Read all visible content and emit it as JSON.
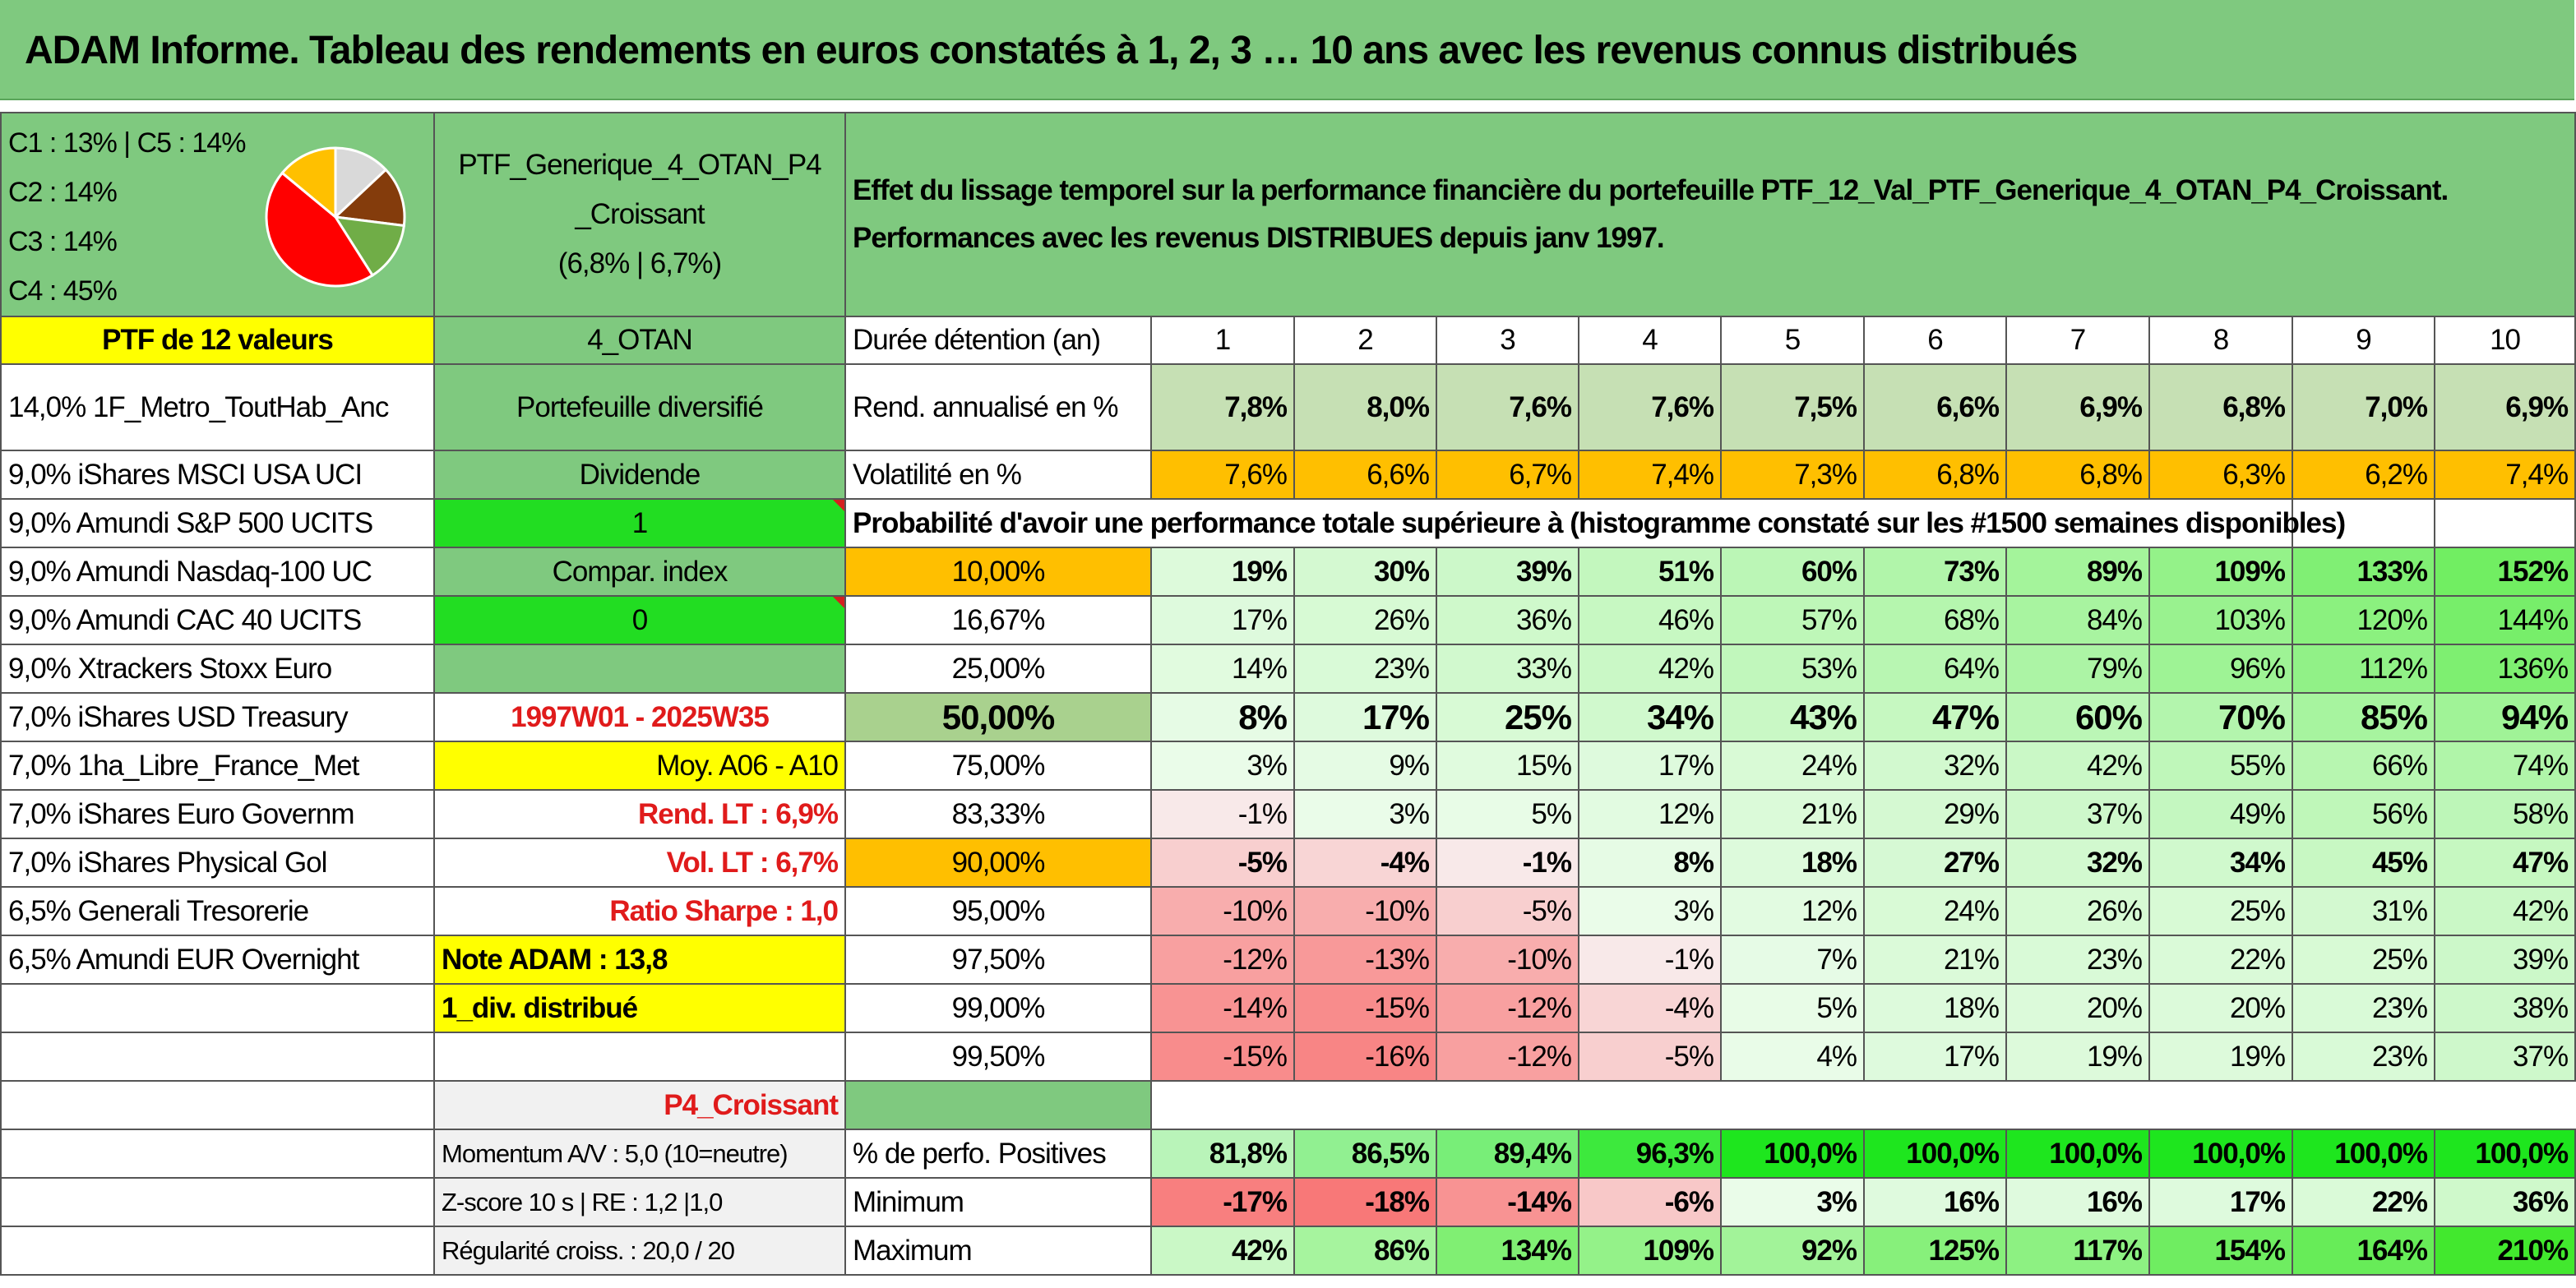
{
  "title": "ADAM Informe. Tableau des rendements en euros constatés à 1, 2, 3 … 10 ans avec les revenus connus distribués",
  "pie": {
    "labels": [
      "C1 : 13% | C5 : 14%",
      "C2 : 14%",
      "C3 : 14%",
      "C4 : 45%"
    ],
    "slices": [
      {
        "label": "C1",
        "value": 13,
        "color": "#d9d9d9"
      },
      {
        "label": "C2",
        "value": 14,
        "color": "#843c0c"
      },
      {
        "label": "C3",
        "value": 14,
        "color": "#70ad47"
      },
      {
        "label": "C4",
        "value": 45,
        "color": "#ff0000"
      },
      {
        "label": "C5",
        "value": 14,
        "color": "#ffc000"
      }
    ]
  },
  "portfolio": {
    "name_line1": "PTF_Generique_4_OTAN_P4",
    "name_line2": "_Croissant",
    "name_line3": "(6,8% | 6,7%)",
    "effet_line1": "Effet du lissage temporel sur la performance financière du portefeuille PTF_12_Val_PTF_Generique_4_OTAN_P4_Croissant.",
    "effet_line2": "Performances avec les revenus DISTRIBUES depuis janv 1997.",
    "count_label": "PTF de 12 valeurs",
    "code": "4_OTAN",
    "type": "Portefeuille diversifié",
    "dividende_label": "Dividende",
    "dividende_value": "1",
    "compar_label": "Compar. index",
    "compar_value": "0",
    "period": "1997W01 - 2025W35",
    "moy": "Moy. A06 - A10",
    "rend_lt": "Rend. LT : 6,9%",
    "vol_lt": "Vol. LT : 6,7%",
    "sharpe": "Ratio Sharpe : 1,0",
    "note": "Note ADAM : 13,8",
    "div_distrib": "1_div. distribué",
    "profile": "P4_Croissant",
    "momentum": "Momentum A/V : 5,0 (10=neutre)",
    "zscore": "Z-score 10 s | RE : 1,2 |1,0",
    "regularite": "Régularité croiss. : 20,0 / 20"
  },
  "holdings": [
    "14,0% 1F_Metro_ToutHab_Anc",
    "9,0% iShares MSCI USA UCI",
    "9,0% Amundi S&P 500 UCITS",
    "9,0% Amundi Nasdaq-100 UC",
    "9,0% Amundi CAC 40 UCITS",
    "9,0% Xtrackers Stoxx Euro",
    "7,0% iShares USD Treasury",
    "7,0% 1ha_Libre_France_Met",
    "7,0% iShares Euro Governm",
    "7,0% iShares Physical Gol",
    "6,5% Generali Tresorerie",
    "6,5% Amundi EUR Overnight"
  ],
  "table": {
    "duree_label": "Durée détention (an)",
    "years": [
      "1",
      "2",
      "3",
      "4",
      "5",
      "6",
      "7",
      "8",
      "9",
      "10"
    ],
    "rend_label": "Rend. annualisé en %",
    "rend": [
      "7,8%",
      "8,0%",
      "7,6%",
      "7,6%",
      "7,5%",
      "6,6%",
      "6,9%",
      "6,8%",
      "7,0%",
      "6,9%"
    ],
    "vol_label": "Volatilité en %",
    "vol": [
      "7,6%",
      "6,6%",
      "6,7%",
      "7,4%",
      "7,3%",
      "6,8%",
      "6,8%",
      "6,3%",
      "6,2%",
      "7,4%"
    ],
    "proba_label": "Probabilité d'avoir une performance totale supérieure à (histogramme constaté sur les #1500 semaines disponibles)",
    "quantiles": [
      {
        "q": "10,00%",
        "v": [
          "19%",
          "30%",
          "39%",
          "51%",
          "60%",
          "73%",
          "89%",
          "109%",
          "133%",
          "152%"
        ]
      },
      {
        "q": "16,67%",
        "v": [
          "17%",
          "26%",
          "36%",
          "46%",
          "57%",
          "68%",
          "84%",
          "103%",
          "120%",
          "144%"
        ]
      },
      {
        "q": "25,00%",
        "v": [
          "14%",
          "23%",
          "33%",
          "42%",
          "53%",
          "64%",
          "79%",
          "96%",
          "112%",
          "136%"
        ]
      },
      {
        "q": "50,00%",
        "v": [
          "8%",
          "17%",
          "25%",
          "34%",
          "43%",
          "47%",
          "60%",
          "70%",
          "85%",
          "94%"
        ]
      },
      {
        "q": "75,00%",
        "v": [
          "3%",
          "9%",
          "15%",
          "17%",
          "24%",
          "32%",
          "42%",
          "55%",
          "66%",
          "74%"
        ]
      },
      {
        "q": "83,33%",
        "v": [
          "-1%",
          "3%",
          "5%",
          "12%",
          "21%",
          "29%",
          "37%",
          "49%",
          "56%",
          "58%"
        ]
      },
      {
        "q": "90,00%",
        "v": [
          "-5%",
          "-4%",
          "-1%",
          "8%",
          "18%",
          "27%",
          "32%",
          "34%",
          "45%",
          "47%"
        ]
      },
      {
        "q": "95,00%",
        "v": [
          "-10%",
          "-10%",
          "-5%",
          "3%",
          "12%",
          "24%",
          "26%",
          "25%",
          "31%",
          "42%"
        ]
      },
      {
        "q": "97,50%",
        "v": [
          "-12%",
          "-13%",
          "-10%",
          "-1%",
          "7%",
          "21%",
          "23%",
          "22%",
          "25%",
          "39%"
        ]
      },
      {
        "q": "99,00%",
        "v": [
          "-14%",
          "-15%",
          "-12%",
          "-4%",
          "5%",
          "18%",
          "20%",
          "20%",
          "23%",
          "38%"
        ]
      },
      {
        "q": "99,50%",
        "v": [
          "-15%",
          "-16%",
          "-12%",
          "-5%",
          "4%",
          "17%",
          "19%",
          "19%",
          "23%",
          "37%"
        ]
      }
    ],
    "pos_label": "% de perfo. Positives",
    "pos": [
      "81,8%",
      "86,5%",
      "89,4%",
      "96,3%",
      "100,0%",
      "100,0%",
      "100,0%",
      "100,0%",
      "100,0%",
      "100,0%"
    ],
    "min_label": "Minimum",
    "min": [
      "-17%",
      "-18%",
      "-14%",
      "-6%",
      "3%",
      "16%",
      "16%",
      "17%",
      "22%",
      "36%"
    ],
    "max_label": "Maximum",
    "max": [
      "42%",
      "86%",
      "134%",
      "109%",
      "92%",
      "125%",
      "117%",
      "154%",
      "164%",
      "210%"
    ]
  },
  "colors": {
    "header_green": "#7fc97f",
    "highlight_yellow": "#ffff00",
    "orange": "#ffbf00",
    "text_red": "#e01b1b",
    "lime": "#22dd22"
  }
}
